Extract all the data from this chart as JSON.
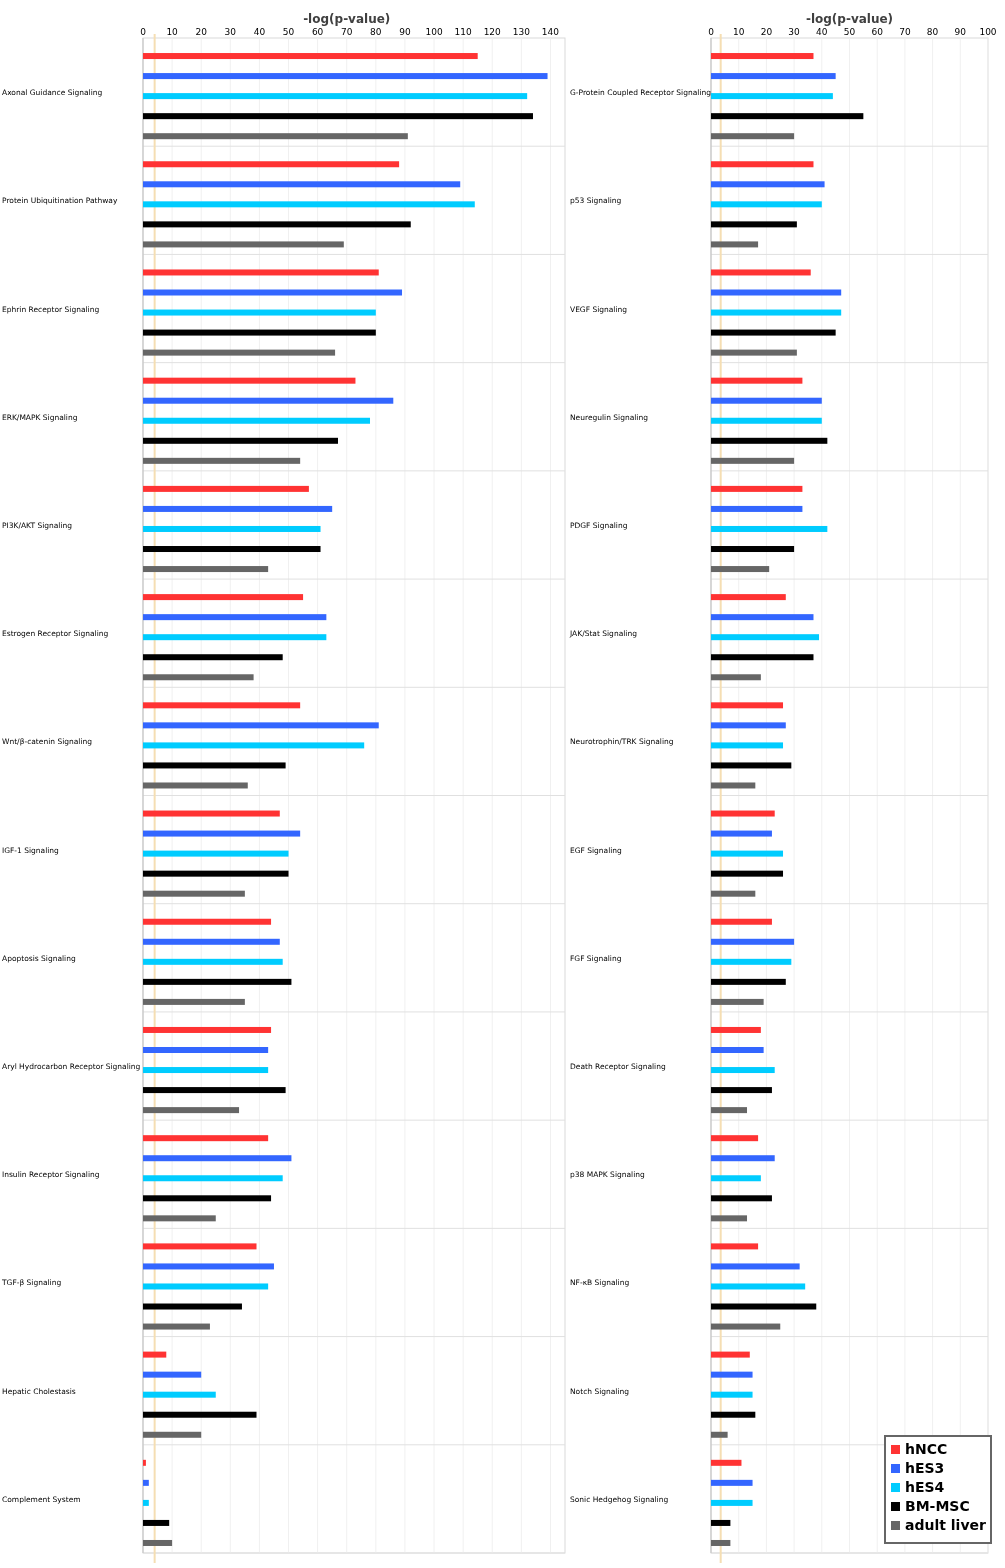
{
  "chart_data": [
    {
      "type": "bar",
      "orientation": "horizontal",
      "xlabel": "-log(p-value)",
      "categories": [
        "Axonal Guidance Signaling",
        "Protein Ubiquitination Pathway",
        "Ephrin Receptor Signaling",
        "ERK/MAPK Signaling",
        "PI3K/AKT Signaling",
        "Estrogen Receptor Signaling",
        "Wnt/β-catenin Signaling",
        "IGF-1 Signaling",
        "Apoptosis Signaling",
        "Aryl Hydrocarbon Receptor Signaling",
        "Insulin Receptor Signaling",
        "TGF-β Signaling",
        "Hepatic Cholestasis",
        "Complement System"
      ],
      "series": [
        {
          "color": "#ff3333",
          "values": [
            115,
            88,
            81,
            73,
            57,
            55,
            54,
            47,
            44,
            44,
            43,
            39,
            8,
            1
          ]
        },
        {
          "color": "#3366ff",
          "values": [
            139,
            109,
            89,
            86,
            65,
            63,
            81,
            54,
            47,
            43,
            51,
            45,
            20,
            2
          ]
        },
        {
          "color": "#00ccff",
          "values": [
            132,
            114,
            80,
            78,
            61,
            63,
            76,
            50,
            48,
            43,
            48,
            43,
            25,
            2
          ]
        },
        {
          "color": "#000000",
          "values": [
            134,
            92,
            80,
            67,
            61,
            48,
            49,
            50,
            51,
            49,
            44,
            34,
            39,
            9
          ]
        },
        {
          "color": "#666666",
          "values": [
            91,
            69,
            66,
            54,
            43,
            38,
            36,
            35,
            35,
            33,
            25,
            23,
            20,
            10
          ]
        }
      ],
      "xlim": [
        0,
        145
      ],
      "xticks": [
        0,
        10,
        20,
        30,
        40,
        50,
        60,
        70,
        80,
        90,
        100,
        110,
        120,
        130,
        140
      ],
      "grid": "x",
      "ref_lines": [
        {
          "axis": "x",
          "value": 4,
          "color": "#f5deb3"
        }
      ]
    },
    {
      "type": "bar",
      "orientation": "horizontal",
      "xlabel": "-log(p-value)",
      "categories": [
        "G-Protein Coupled Receptor Signaling",
        "p53 Signaling",
        "VEGF Signaling",
        "Neuregulin Signaling",
        "PDGF Signaling",
        "JAK/Stat Signaling",
        "Neurotrophin/TRK Signaling",
        "EGF Signaling",
        "FGF Signaling",
        "Death Receptor Signaling",
        "p38 MAPK Signaling",
        "NF-κB Signaling",
        "Notch Signaling",
        "Sonic Hedgehog Signaling"
      ],
      "series": [
        {
          "name": "hNCC",
          "color": "#ff3333",
          "values": [
            37,
            37,
            36,
            33,
            33,
            27,
            26,
            23,
            22,
            18,
            17,
            17,
            14,
            11
          ]
        },
        {
          "name": "hES3",
          "color": "#3366ff",
          "values": [
            45,
            41,
            47,
            40,
            33,
            37,
            27,
            22,
            30,
            19,
            23,
            32,
            15,
            15
          ]
        },
        {
          "name": "hES4",
          "color": "#00ccff",
          "values": [
            44,
            40,
            47,
            40,
            42,
            39,
            26,
            26,
            29,
            23,
            18,
            34,
            15,
            15
          ]
        },
        {
          "name": "BM-MSC",
          "color": "#000000",
          "values": [
            55,
            31,
            45,
            42,
            30,
            37,
            29,
            26,
            27,
            22,
            22,
            38,
            16,
            7
          ]
        },
        {
          "name": "adult liver",
          "color": "#666666",
          "values": [
            30,
            17,
            31,
            30,
            21,
            18,
            16,
            16,
            19,
            13,
            13,
            25,
            6,
            7
          ]
        }
      ],
      "xlim": [
        0,
        100
      ],
      "xticks": [
        0,
        10,
        20,
        30,
        40,
        50,
        60,
        70,
        80,
        90,
        100
      ],
      "grid": "x",
      "legend": "bottom right",
      "ref_lines": [
        {
          "axis": "x",
          "value": 3.5,
          "color": "#f5deb3"
        }
      ]
    }
  ]
}
